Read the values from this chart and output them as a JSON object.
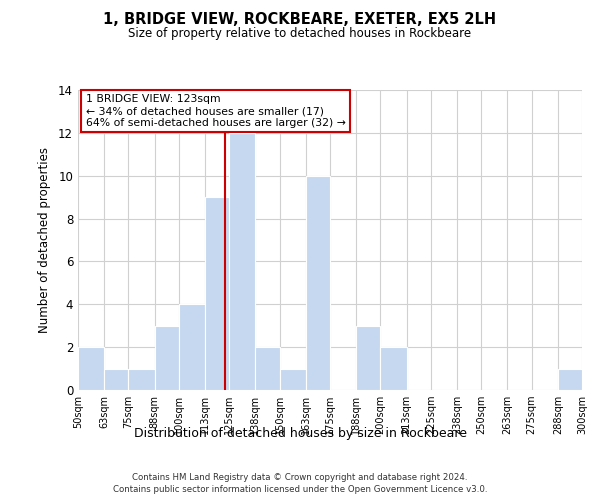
{
  "title": "1, BRIDGE VIEW, ROCKBEARE, EXETER, EX5 2LH",
  "subtitle": "Size of property relative to detached houses in Rockbeare",
  "xlabel": "Distribution of detached houses by size in Rockbeare",
  "ylabel": "Number of detached properties",
  "bin_edges": [
    50,
    63,
    75,
    88,
    100,
    113,
    125,
    138,
    150,
    163,
    175,
    188,
    200,
    213,
    225,
    238,
    250,
    263,
    275,
    288,
    300
  ],
  "bin_counts": [
    2,
    1,
    1,
    3,
    4,
    9,
    12,
    2,
    1,
    10,
    0,
    3,
    2,
    0,
    0,
    0,
    0,
    0,
    0,
    1
  ],
  "bar_color": "#c5d8f0",
  "bar_edge_color": "#ffffff",
  "property_line_x": 123,
  "annotation_title": "1 BRIDGE VIEW: 123sqm",
  "annotation_line1": "← 34% of detached houses are smaller (17)",
  "annotation_line2": "64% of semi-detached houses are larger (32) →",
  "annotation_box_color": "#ffffff",
  "annotation_box_edge": "#cc0000",
  "property_line_color": "#cc0000",
  "ylim": [
    0,
    14
  ],
  "yticks": [
    0,
    2,
    4,
    6,
    8,
    10,
    12,
    14
  ],
  "grid_color": "#d0d0d0",
  "bg_color": "#ffffff",
  "footer_line1": "Contains HM Land Registry data © Crown copyright and database right 2024.",
  "footer_line2": "Contains public sector information licensed under the Open Government Licence v3.0."
}
